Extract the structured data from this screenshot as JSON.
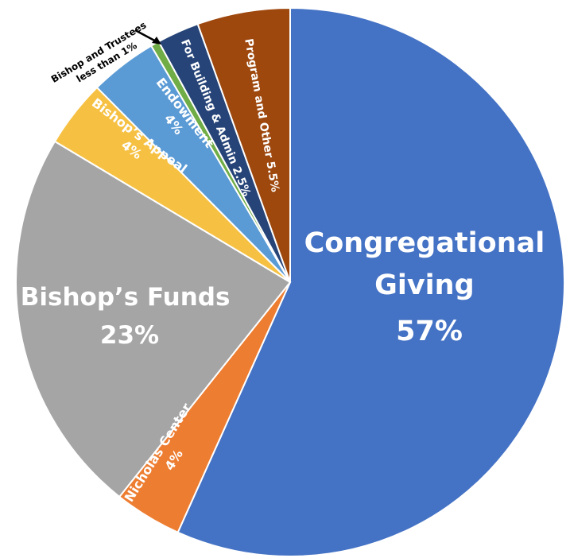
{
  "chart_data": {
    "type": "pie",
    "title": "",
    "slices": [
      {
        "name": "Congregational",
        "name2": "Giving",
        "pct_label": "57%",
        "value": 57,
        "color": "#4472C4"
      },
      {
        "name": "Nicholas Center",
        "pct_label": "4%",
        "value": 4,
        "color": "#ED7D31"
      },
      {
        "name": "Bishop’s Funds",
        "pct_label": "23%",
        "value": 23,
        "color": "#A5A5A5"
      },
      {
        "name": "Bishop’s Appeal",
        "pct_label": "4%",
        "value": 4,
        "color": "#F6C143"
      },
      {
        "name": "Endowment",
        "pct_label": "4%",
        "value": 4,
        "color": "#5B9BD5"
      },
      {
        "name": "Bishop and Trustees",
        "name2": "less than 1%",
        "value": 0.5,
        "color": "#70AD47"
      },
      {
        "name": "For Building & Admin 2.5%",
        "value": 2.5,
        "color": "#264478"
      },
      {
        "name": "Program and Other  5.5%",
        "value": 5.5,
        "color": "#9E480E"
      }
    ],
    "legend": "none"
  }
}
